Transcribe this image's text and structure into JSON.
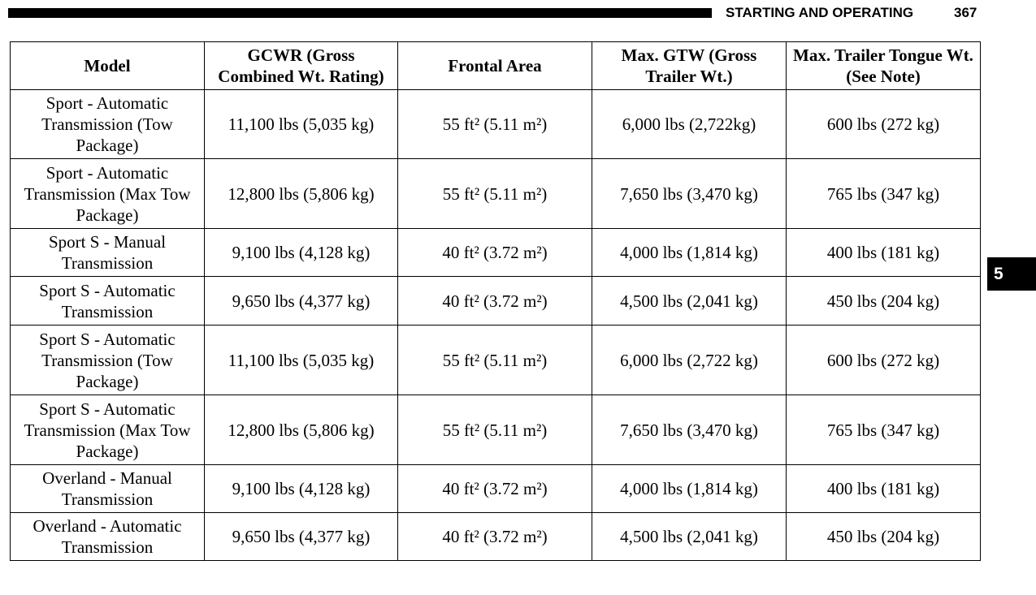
{
  "header": {
    "section": "STARTING AND OPERATING",
    "page": "367"
  },
  "tab": "5",
  "table": {
    "columns": [
      "Model",
      "GCWR (Gross Combined Wt. Rating)",
      "Frontal Area",
      "Max. GTW (Gross Trailer Wt.)",
      "Max. Trailer Tongue Wt. (See Note)"
    ],
    "rows": [
      [
        "Sport - Automatic Transmission (Tow Package)",
        "11,100 lbs (5,035 kg)",
        "55 ft² (5.11 m²)",
        "6,000 lbs (2,722kg)",
        "600 lbs (272 kg)"
      ],
      [
        "Sport - Automatic Transmission (Max Tow Package)",
        "12,800 lbs (5,806 kg)",
        "55 ft² (5.11 m²)",
        "7,650 lbs (3,470 kg)",
        "765 lbs (347 kg)"
      ],
      [
        "Sport S - Manual Transmission",
        "9,100 lbs (4,128 kg)",
        "40 ft² (3.72 m²)",
        "4,000 lbs (1,814 kg)",
        "400 lbs (181 kg)"
      ],
      [
        "Sport S - Automatic Transmission",
        "9,650 lbs (4,377 kg)",
        "40 ft² (3.72 m²)",
        "4,500 lbs (2,041 kg)",
        "450 lbs (204 kg)"
      ],
      [
        "Sport S - Automatic Transmission (Tow Package)",
        "11,100 lbs (5,035 kg)",
        "55 ft² (5.11 m²)",
        "6,000 lbs (2,722 kg)",
        "600 lbs (272 kg)"
      ],
      [
        "Sport S - Automatic Transmission (Max Tow Package)",
        "12,800 lbs (5,806 kg)",
        "55 ft² (5.11 m²)",
        "7,650 lbs (3,470 kg)",
        "765 lbs (347 kg)"
      ],
      [
        "Overland - Manual Transmission",
        "9,100 lbs (4,128 kg)",
        "40 ft² (3.72 m²)",
        "4,000 lbs (1,814 kg)",
        "400 lbs (181 kg)"
      ],
      [
        "Overland - Automatic Transmission",
        "9,650 lbs (4,377 kg)",
        "40 ft² (3.72 m²)",
        "4,500 lbs (2,041 kg)",
        "450 lbs (204 kg)"
      ]
    ]
  }
}
